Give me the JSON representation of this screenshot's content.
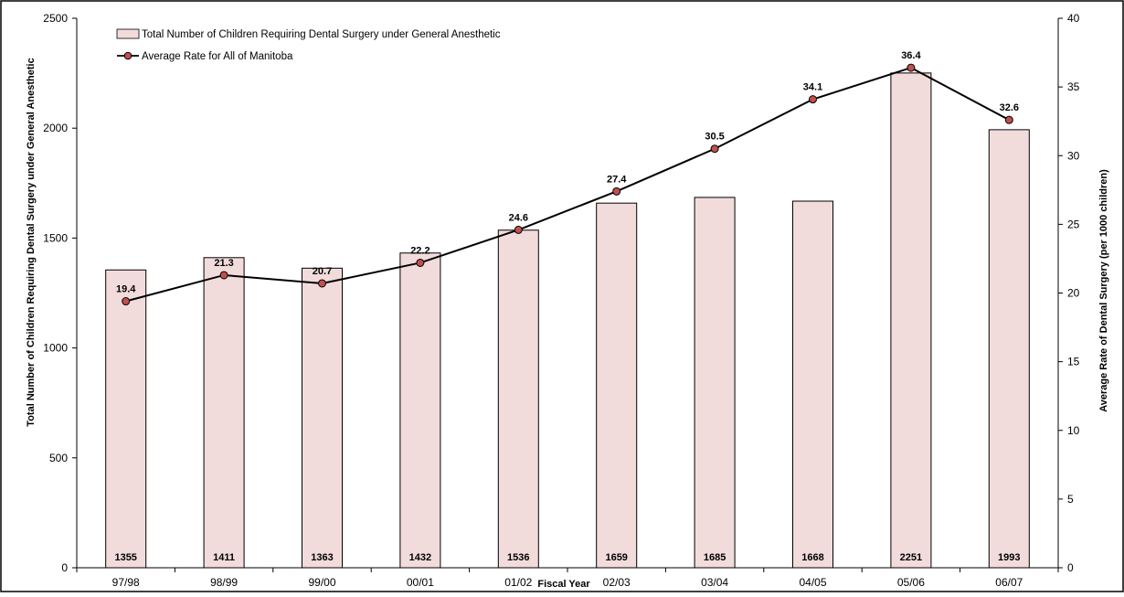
{
  "chart_data": {
    "type": "bar",
    "categories": [
      "97/98",
      "98/99",
      "99/00",
      "00/01",
      "01/02",
      "02/03",
      "03/04",
      "04/05",
      "05/06",
      "06/07"
    ],
    "series": [
      {
        "name": "Total Number of Children Requiring Dental Surgery under General Anesthetic",
        "type": "bar",
        "axis": "left",
        "values": [
          1355,
          1411,
          1363,
          1432,
          1536,
          1659,
          1685,
          1668,
          2251,
          1993
        ],
        "color": "#f2dcdb"
      },
      {
        "name": "Average Rate for All of Manitoba",
        "type": "line",
        "axis": "right",
        "values": [
          19.4,
          21.3,
          20.7,
          22.2,
          24.6,
          27.4,
          30.5,
          34.1,
          36.4,
          32.6
        ],
        "color": "#000000",
        "marker_color": "#c0504d"
      }
    ],
    "xlabel": "Fiscal Year",
    "ylabel": "Total Number of Children Requiring Dental Surgery under General Anesthetic",
    "y2label": "Average Rate of Dental Surgery (per 1000 children)",
    "ylim": [
      0,
      2500
    ],
    "yticks": [
      0,
      500,
      1000,
      1500,
      2000,
      2500
    ],
    "y2lim": [
      0,
      40
    ],
    "y2ticks": [
      0,
      5,
      10,
      15,
      20,
      25,
      30,
      35,
      40
    ],
    "grid": false,
    "legend": "top-left",
    "data_labels": true
  }
}
